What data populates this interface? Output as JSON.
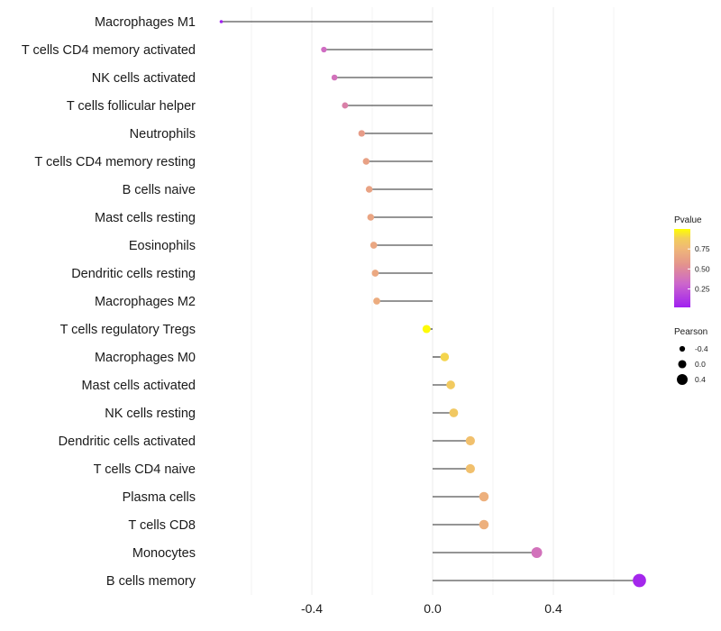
{
  "chart_data": {
    "type": "lollipop",
    "title": "",
    "xlabel": "",
    "ylabel": "",
    "xlim": [
      -0.7,
      0.7
    ],
    "xticks": [
      -0.4,
      0.0,
      0.4
    ],
    "xtick_labels": [
      "-0.4",
      "0.0",
      "0.4"
    ],
    "grid": "vertical major and minor",
    "categories": [
      "Macrophages M1",
      "T cells CD4 memory activated",
      "NK cells activated",
      "T cells follicular helper",
      "Neutrophils",
      "T cells CD4 memory resting",
      "B cells naive",
      "Mast cells resting",
      "Eosinophils",
      "Dendritic cells resting",
      "Macrophages M2",
      "T cells regulatory  Tregs ",
      "Macrophages M0",
      "Mast cells activated",
      "NK cells resting",
      "Dendritic cells activated",
      "T cells CD4 naive",
      "Plasma cells",
      "T cells CD8",
      "Monocytes",
      "B cells memory"
    ],
    "pearson": [
      -0.7,
      -0.36,
      -0.325,
      -0.29,
      -0.235,
      -0.22,
      -0.21,
      -0.205,
      -0.195,
      -0.19,
      -0.185,
      -0.02,
      0.04,
      0.06,
      0.07,
      0.125,
      0.125,
      0.17,
      0.17,
      0.345,
      0.685
    ],
    "pvalue": [
      0.02,
      0.35,
      0.38,
      0.45,
      0.6,
      0.63,
      0.64,
      0.65,
      0.66,
      0.67,
      0.69,
      0.99,
      0.9,
      0.86,
      0.85,
      0.8,
      0.8,
      0.71,
      0.71,
      0.38,
      0.05
    ],
    "color_legend": {
      "title": "Pvalue",
      "ticks": [
        0.75,
        0.5,
        0.25
      ],
      "tick_labels": [
        "0.75",
        "0.50",
        "0.25"
      ],
      "range": [
        0.02,
        1.0
      ],
      "low_color": "#a020f0",
      "high_color": "#ffff00"
    },
    "size_legend": {
      "title": "Pearson",
      "values": [
        -0.4,
        0.0,
        0.4
      ],
      "labels": [
        "-0.4",
        "0.0",
        "0.4"
      ]
    },
    "legend_position": "right",
    "colors": {
      "segment": "#2b2b2b",
      "grid": "#ebebeb",
      "legend_point": "#000000"
    }
  }
}
